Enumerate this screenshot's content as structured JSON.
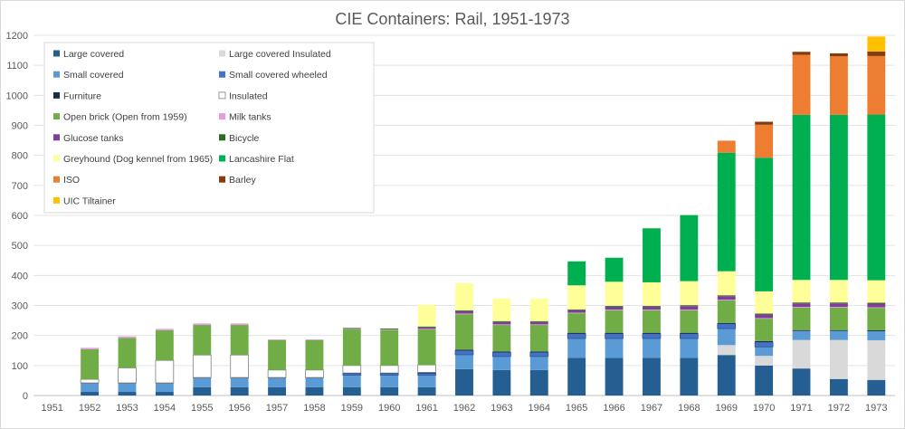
{
  "chart_data": {
    "type": "bar",
    "stacked": true,
    "title": "CIE Containers: Rail, 1951-1973",
    "xlabel": "",
    "ylabel": "",
    "ylim": [
      0,
      1200
    ],
    "yticks": [
      0,
      100,
      200,
      300,
      400,
      500,
      600,
      700,
      800,
      900,
      1000,
      1100,
      1200
    ],
    "grid": true,
    "legend_position": "top-left",
    "categories": [
      "1951",
      "1952",
      "1953",
      "1954",
      "1955",
      "1956",
      "1957",
      "1958",
      "1959",
      "1960",
      "1961",
      "1962",
      "1963",
      "1964",
      "1965",
      "1966",
      "1967",
      "1968",
      "1969",
      "1970",
      "1971",
      "1972",
      "1973"
    ],
    "series": [
      {
        "name": "Large covered",
        "color": "#255e91",
        "values": [
          0,
          12,
          12,
          12,
          28,
          28,
          28,
          28,
          28,
          28,
          28,
          88,
          85,
          85,
          125,
          125,
          125,
          125,
          135,
          100,
          90,
          55,
          52
        ]
      },
      {
        "name": "Large covered Insulated",
        "color": "#d9d9d9",
        "values": [
          0,
          0,
          0,
          0,
          0,
          0,
          0,
          0,
          0,
          0,
          0,
          0,
          0,
          0,
          0,
          0,
          0,
          0,
          33,
          32,
          95,
          130,
          132
        ]
      },
      {
        "name": "Small covered",
        "color": "#5b9bd5",
        "values": [
          0,
          28,
          28,
          28,
          30,
          30,
          30,
          30,
          40,
          40,
          40,
          48,
          45,
          45,
          65,
          65,
          65,
          65,
          55,
          30,
          30,
          30,
          30
        ]
      },
      {
        "name": "Small covered wheeled",
        "color": "#4472c4",
        "values": [
          0,
          0,
          0,
          0,
          0,
          0,
          0,
          0,
          5,
          5,
          6,
          14,
          14,
          14,
          16,
          16,
          16,
          16,
          16,
          16,
          0,
          0,
          0
        ]
      },
      {
        "name": "Furniture",
        "color": "#1b2d44",
        "values": [
          0,
          2,
          2,
          2,
          2,
          2,
          2,
          2,
          2,
          2,
          3,
          3,
          3,
          3,
          3,
          3,
          3,
          3,
          3,
          3,
          3,
          3,
          3
        ]
      },
      {
        "name": "Insulated",
        "color": "#ffffff",
        "values": [
          0,
          12,
          50,
          75,
          75,
          75,
          25,
          25,
          25,
          25,
          25,
          0,
          0,
          0,
          0,
          0,
          0,
          0,
          0,
          0,
          0,
          0,
          0
        ]
      },
      {
        "name": "Open brick (Open from 1959)",
        "color": "#70ad47",
        "values": [
          0,
          100,
          100,
          100,
          100,
          100,
          100,
          100,
          120,
          118,
          118,
          118,
          88,
          88,
          65,
          75,
          75,
          75,
          75,
          75,
          75,
          75,
          75
        ]
      },
      {
        "name": "Milk tanks",
        "color": "#e59edd",
        "values": [
          0,
          5,
          5,
          5,
          5,
          5,
          2,
          2,
          2,
          2,
          2,
          2,
          2,
          2,
          2,
          2,
          2,
          2,
          2,
          2,
          2,
          2,
          2
        ]
      },
      {
        "name": "Glucose tanks",
        "color": "#7f3f98",
        "values": [
          0,
          0,
          0,
          0,
          0,
          0,
          0,
          0,
          0,
          0,
          5,
          8,
          8,
          8,
          8,
          10,
          10,
          12,
          12,
          12,
          12,
          12,
          12
        ]
      },
      {
        "name": "Bicycle",
        "color": "#2e6b23",
        "values": [
          0,
          0,
          0,
          0,
          0,
          0,
          0,
          0,
          3,
          3,
          3,
          3,
          3,
          3,
          3,
          3,
          3,
          3,
          3,
          3,
          3,
          3,
          3
        ]
      },
      {
        "name": "Greyhound (Dog kennel from 1965)",
        "color": "#ffff99",
        "values": [
          0,
          0,
          0,
          0,
          0,
          0,
          0,
          0,
          0,
          0,
          72,
          90,
          75,
          75,
          80,
          80,
          78,
          80,
          80,
          74,
          75,
          75,
          75
        ]
      },
      {
        "name": "Lancashire Flat",
        "color": "#00b050",
        "values": [
          0,
          0,
          0,
          0,
          0,
          0,
          0,
          0,
          0,
          0,
          0,
          0,
          0,
          0,
          80,
          80,
          180,
          220,
          395,
          445,
          550,
          550,
          552
        ]
      },
      {
        "name": "ISO",
        "color": "#ed7d31",
        "values": [
          0,
          0,
          0,
          0,
          0,
          0,
          0,
          0,
          0,
          0,
          0,
          0,
          0,
          0,
          0,
          0,
          0,
          0,
          40,
          110,
          200,
          195,
          195
        ]
      },
      {
        "name": "Barley",
        "color": "#843c0c",
        "values": [
          0,
          0,
          0,
          0,
          0,
          0,
          0,
          0,
          0,
          0,
          0,
          0,
          0,
          0,
          0,
          0,
          0,
          0,
          0,
          10,
          10,
          10,
          15
        ]
      },
      {
        "name": "UIC Tiltainer",
        "color": "#ffc000",
        "values": [
          0,
          0,
          0,
          0,
          0,
          0,
          0,
          0,
          0,
          0,
          0,
          0,
          0,
          0,
          0,
          0,
          0,
          0,
          0,
          0,
          0,
          0,
          50
        ]
      }
    ]
  }
}
